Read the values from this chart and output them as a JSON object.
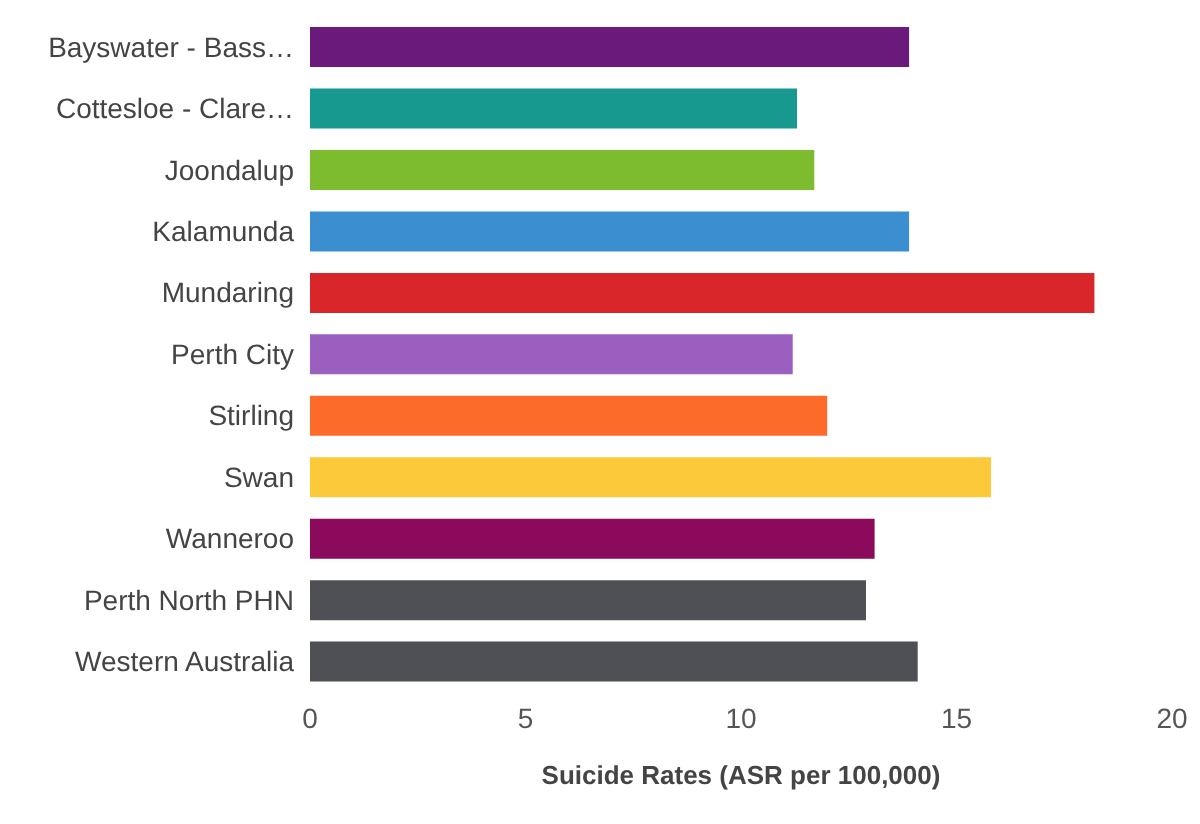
{
  "chart_data": {
    "type": "bar",
    "orientation": "horizontal",
    "xlabel": "Suicide Rates (ASR per 100,000)",
    "categories": [
      "Bayswater - Bass…",
      "Cottesloe - Clare…",
      "Joondalup",
      "Kalamunda",
      "Mundaring",
      "Perth City",
      "Stirling",
      "Swan",
      "Wanneroo",
      "Perth North PHN",
      "Western Australia"
    ],
    "values": [
      13.9,
      11.3,
      11.7,
      13.9,
      18.2,
      11.2,
      12.0,
      15.8,
      13.1,
      12.9,
      14.1
    ],
    "colors": [
      "#6a1a7a",
      "#17998f",
      "#7dbb2f",
      "#3b8fd0",
      "#d9262b",
      "#9b5fc0",
      "#fd6b2b",
      "#fcc93a",
      "#8b0a5c",
      "#4f4f56",
      "#4f4f56"
    ],
    "xlim": [
      0,
      20
    ],
    "xticks": [
      0,
      5,
      10,
      15,
      20
    ],
    "grid": false,
    "legend": false
  }
}
